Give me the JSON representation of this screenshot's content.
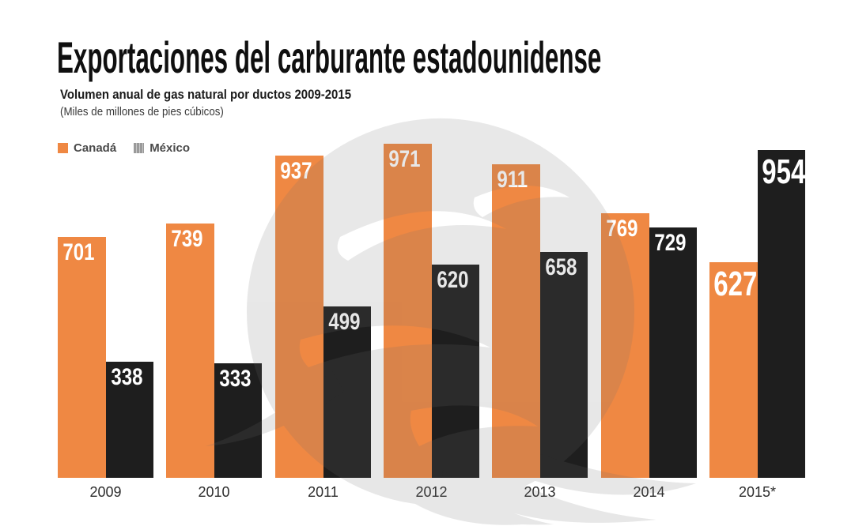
{
  "header": {
    "title": "Exportaciones del carburante estadounidense",
    "subtitle": "Volumen anual de gas natural por ductos 2009-2015",
    "unit_note": "(Miles de millones de pies cúbicos)"
  },
  "legend": {
    "position": "top-left",
    "items": [
      {
        "label": "Canadá",
        "color": "#EF8843",
        "swatch_style": "solid"
      },
      {
        "label": "México",
        "color": "#9A9A9A",
        "swatch_style": "striped"
      }
    ]
  },
  "chart_data": {
    "type": "bar",
    "title": "Exportaciones del carburante estadounidense",
    "subtitle": "Volumen anual de gas natural por ductos 2009-2015",
    "unit": "Miles de millones de pies cúbicos",
    "categories": [
      "2009",
      "2010",
      "2011",
      "2012",
      "2013",
      "2014",
      "2015*"
    ],
    "series": [
      {
        "name": "Canadá",
        "color": "#EF8843",
        "values": [
          701,
          739,
          937,
          971,
          911,
          769,
          627
        ]
      },
      {
        "name": "México",
        "color": "#1E1E1E",
        "values": [
          338,
          333,
          499,
          620,
          658,
          729,
          954
        ]
      }
    ],
    "ylim": [
      0,
      980
    ],
    "grid": false,
    "y_axis_shown": false,
    "value_labels": "inside-top, white, bold; 2015* labels enlarged",
    "legend_position": "top-left"
  },
  "watermark": {
    "icon": "eagle-logo-watermark",
    "color": "#6E6E6E",
    "opacity": 0.16
  },
  "colors": {
    "background": "#FFFFFF",
    "canada_bar": "#EF8843",
    "mexico_bar": "#1E1E1E",
    "value_label_text": "#FFFFFF",
    "axis_label_text": "#2D2D2D",
    "title_text": "#0F0F0F"
  }
}
